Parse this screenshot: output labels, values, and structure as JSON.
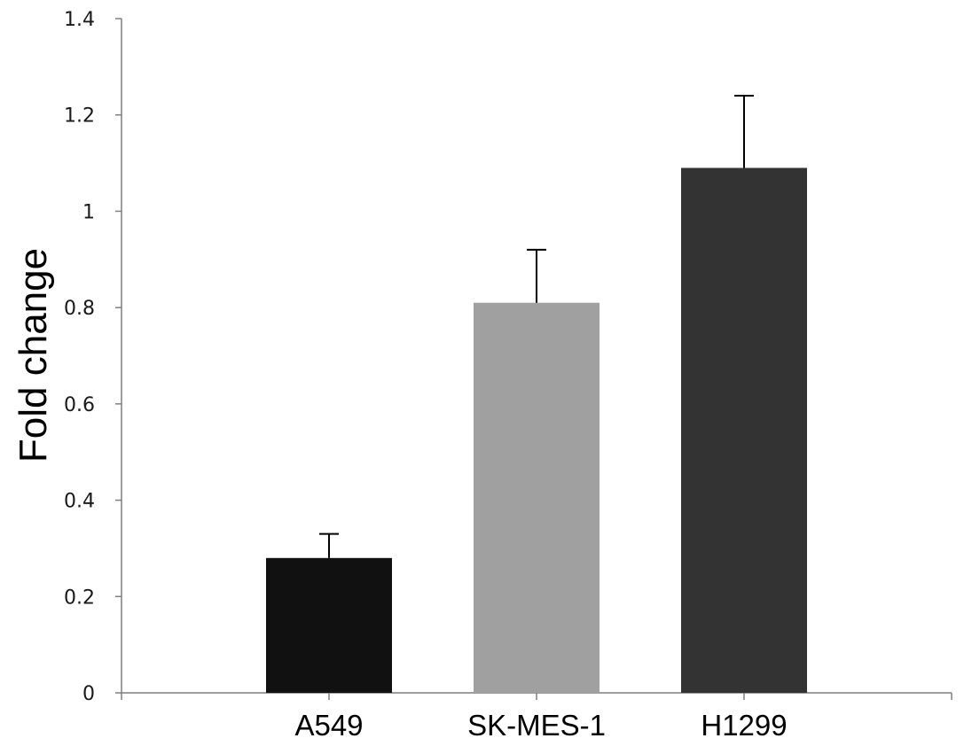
{
  "chart_data": {
    "type": "bar",
    "title": "",
    "xlabel": "",
    "ylabel": "Fold change",
    "categories": [
      "A549",
      "SK-MES-1",
      "H1299"
    ],
    "values": [
      0.28,
      0.81,
      1.09
    ],
    "errors": [
      0.05,
      0.11,
      0.15
    ],
    "colors": [
      "#111111",
      "#a0a0a0",
      "#333333"
    ],
    "ylim": [
      0,
      1.4
    ],
    "yticks": [
      0,
      0.2,
      0.4,
      0.6,
      0.8,
      1,
      1.2,
      1.4
    ],
    "ytick_labels": [
      "0",
      "0.2",
      "0.4",
      "0.6",
      "0.8",
      "1",
      "1.2",
      "1.4"
    ],
    "error_bars": "upper",
    "grid": false,
    "legend": "none"
  }
}
